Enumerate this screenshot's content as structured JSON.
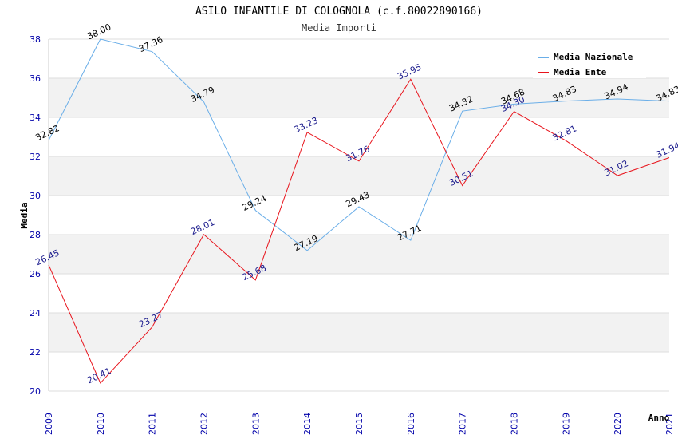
{
  "chart_data": {
    "type": "line",
    "title": "ASILO INFANTILE DI COLOGNOLA (c.f.80022890166)",
    "subtitle": "Media Importi",
    "xlabel": "Anno",
    "ylabel": "Media",
    "ylim": [
      20,
      38
    ],
    "yticks": [
      "20",
      "22",
      "24",
      "26",
      "28",
      "30",
      "32",
      "34",
      "36",
      "38"
    ],
    "categories": [
      "2009",
      "2010",
      "2011",
      "2012",
      "2013",
      "2014",
      "2015",
      "2016",
      "2017",
      "2018",
      "2019",
      "2020",
      "2021"
    ],
    "legend_position": "top-right",
    "series": [
      {
        "name": "Media Nazionale",
        "color": "#6aaee8",
        "values": [
          32.82,
          38.0,
          37.36,
          34.79,
          29.24,
          27.19,
          29.43,
          27.71,
          34.32,
          34.68,
          34.83,
          34.94,
          34.83
        ],
        "labels": [
          "32.82",
          "38.00",
          "37.36",
          "34.79",
          "29.24",
          "27.19",
          "29.43",
          "27.71",
          "34.32",
          "34.68",
          "34.83",
          "34.94",
          "34.83"
        ]
      },
      {
        "name": "Media Ente",
        "color": "#e8141c",
        "values": [
          26.45,
          20.41,
          23.27,
          28.01,
          25.68,
          33.23,
          31.76,
          35.95,
          30.51,
          34.3,
          32.81,
          31.02,
          31.94
        ],
        "labels": [
          "26.45",
          "20.41",
          "23.27",
          "28.01",
          "25.68",
          "33.23",
          "31.76",
          "35.95",
          "30.51",
          "34.30",
          "32.81",
          "31.02",
          "31.94"
        ]
      }
    ]
  }
}
